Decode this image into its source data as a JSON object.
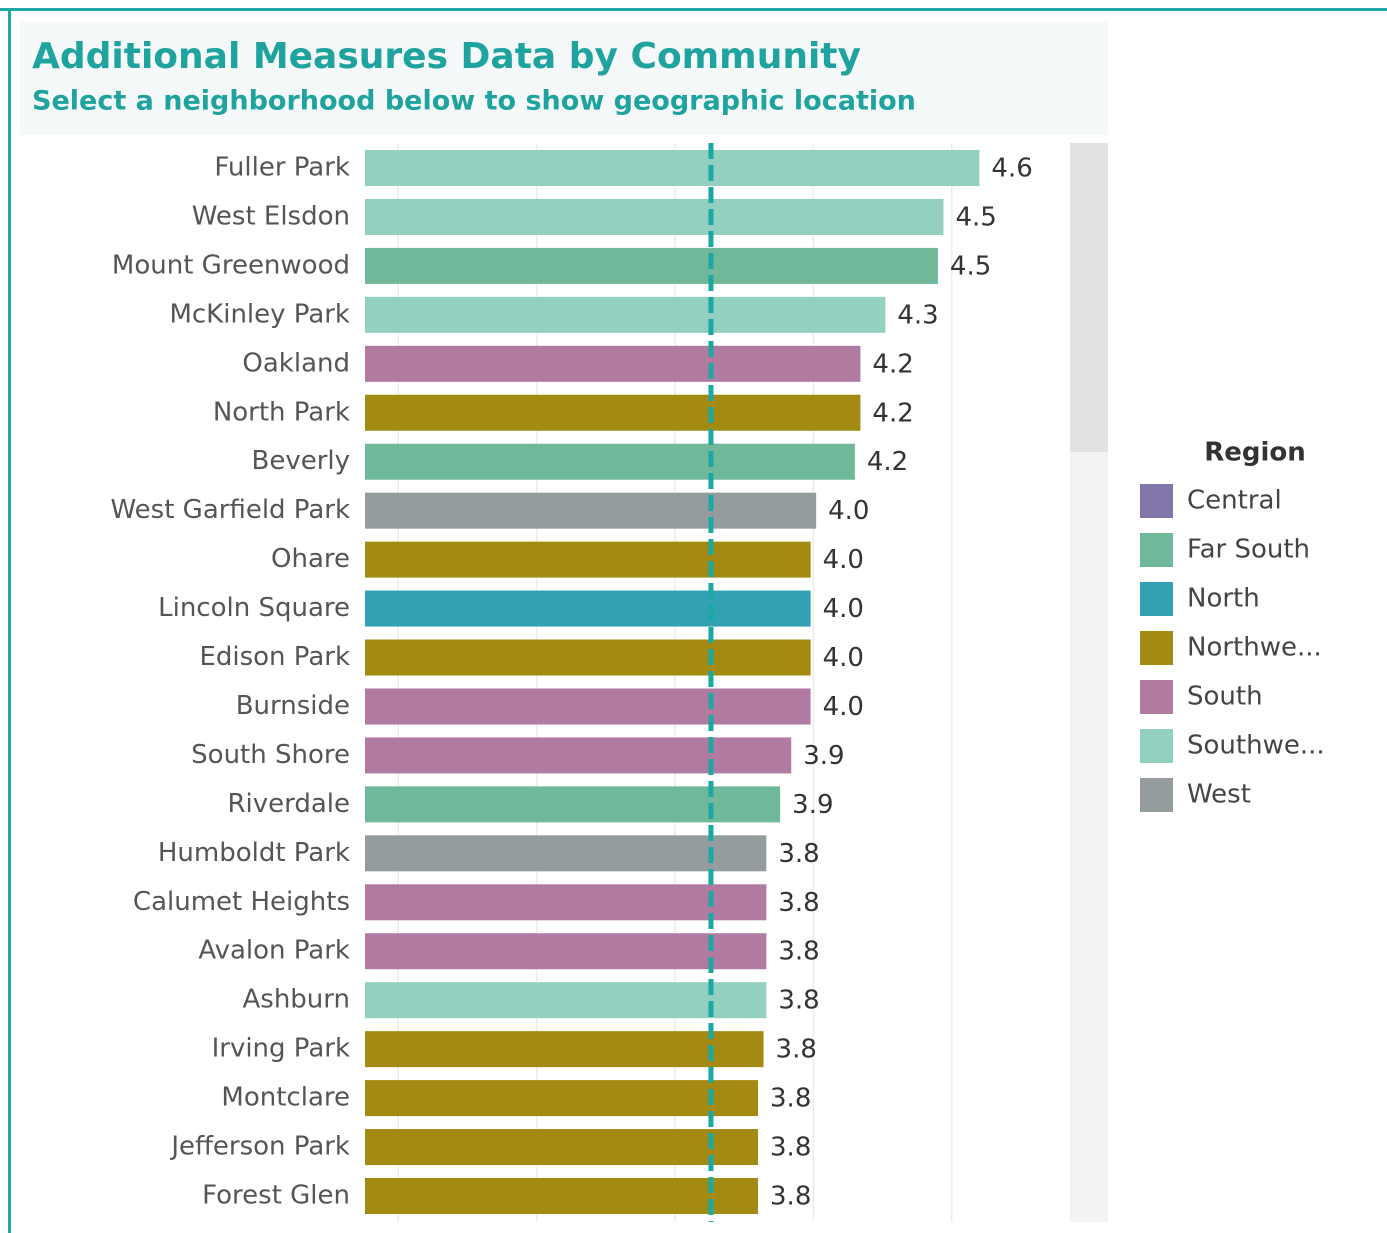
{
  "chart_data": {
    "type": "bar",
    "orientation": "horizontal",
    "title": "Additional Measures Data by Community",
    "subtitle": "Select a neighborhood below to show geographic location",
    "categories": [
      "Fuller Park",
      "West Elsdon",
      "Mount Greenwood",
      "McKinley Park",
      "Oakland",
      "North Park",
      "Beverly",
      "West Garfield Park",
      "Ohare",
      "Lincoln Square",
      "Edison Park",
      "Burnside",
      "South Shore",
      "Riverdale",
      "Humboldt Park",
      "Calumet Heights",
      "Avalon Park",
      "Ashburn",
      "Irving Park",
      "Montclare",
      "Jefferson Park",
      "Forest Glen"
    ],
    "values": [
      4.6,
      4.47,
      4.45,
      4.26,
      4.17,
      4.17,
      4.15,
      4.01,
      3.99,
      3.99,
      3.99,
      3.99,
      3.92,
      3.88,
      3.83,
      3.83,
      3.83,
      3.83,
      3.82,
      3.8,
      3.8,
      3.8
    ],
    "value_labels": [
      "4.6",
      "4.5",
      "4.5",
      "4.3",
      "4.2",
      "4.2",
      "4.2",
      "4.0",
      "4.0",
      "4.0",
      "4.0",
      "4.0",
      "3.9",
      "3.9",
      "3.8",
      "3.8",
      "3.8",
      "3.8",
      "3.8",
      "3.8",
      "3.8",
      "3.8"
    ],
    "colors": [
      "#94d0c0",
      "#94d0c0",
      "#6fb899",
      "#94d0c0",
      "#b07aa1",
      "#a38b13",
      "#6fb899",
      "#959c9e",
      "#a38b13",
      "#31a1b3",
      "#a38b13",
      "#b07aa1",
      "#b07aa1",
      "#6fb899",
      "#959c9e",
      "#b07aa1",
      "#b07aa1",
      "#94d0c0",
      "#a38b13",
      "#a38b13",
      "#a38b13",
      "#a38b13"
    ],
    "xlim": [
      2.38,
      4.92
    ],
    "xticks": [
      2.5,
      3,
      3.5,
      4,
      4.5
    ],
    "grid": true,
    "reference_line": 3.63,
    "legend": {
      "title": "Region",
      "position": "right",
      "items": [
        {
          "name": "Central",
          "color": "#8175aa"
        },
        {
          "name": "Far South",
          "color": "#6fb899"
        },
        {
          "name": "North",
          "color": "#31a1b3"
        },
        {
          "name": "Northwe...",
          "color": "#a38b13"
        },
        {
          "name": "South",
          "color": "#b07aa1"
        },
        {
          "name": "Southwe...",
          "color": "#94d0c0"
        },
        {
          "name": "West",
          "color": "#959c9e"
        }
      ]
    }
  }
}
